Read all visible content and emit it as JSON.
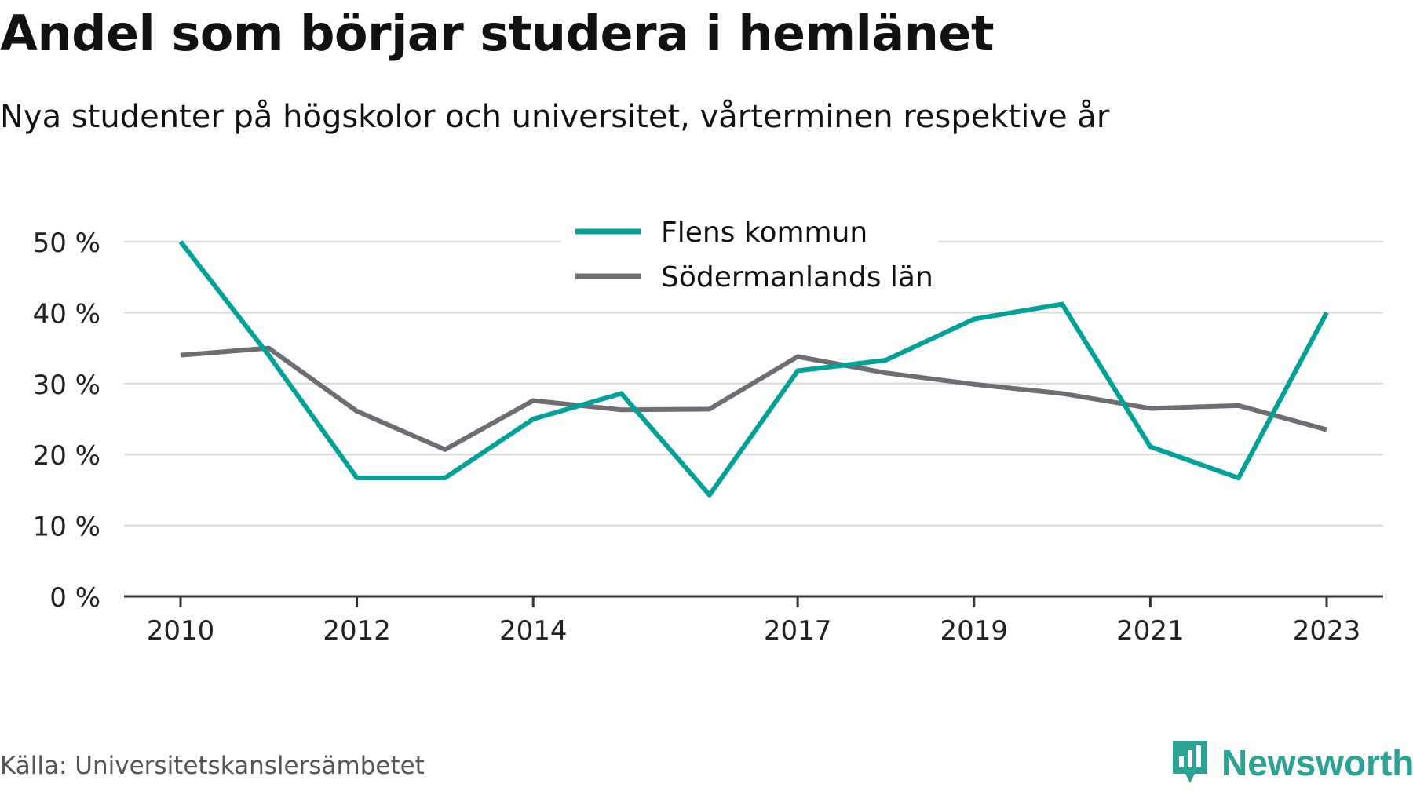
{
  "title": "Andel som börjar studera i hemlänet",
  "subtitle": "Nya studenter på högskolor och universitet, vårterminen respektive år",
  "source": "Källa: Universitetskanslersämbetet",
  "brand": {
    "name": "Newsworthy",
    "icon": "newsworthy-logo-icon",
    "color": "#2aa395"
  },
  "chart_data": {
    "type": "line",
    "x": [
      2010,
      2011,
      2012,
      2013,
      2014,
      2015,
      2016,
      2017,
      2018,
      2019,
      2020,
      2021,
      2022,
      2023
    ],
    "x_tick_values": [
      2010,
      2012,
      2014,
      2017,
      2019,
      2021,
      2023
    ],
    "x_tick_labels": [
      "2010",
      "2012",
      "2014",
      "2017",
      "2019",
      "2021",
      "2023"
    ],
    "y_ticks": [
      0,
      10,
      20,
      30,
      40,
      50
    ],
    "y_tick_labels": [
      "0 %",
      "10 %",
      "20 %",
      "30 %",
      "40 %",
      "50 %"
    ],
    "ylim": [
      0,
      50
    ],
    "grid": true,
    "legend_position": "top-center",
    "series": [
      {
        "name": "Flens kommun",
        "color": "#00a197",
        "values": [
          50.0,
          34.0,
          16.7,
          16.7,
          25.0,
          28.6,
          14.3,
          31.8,
          33.3,
          39.1,
          41.2,
          21.1,
          16.7,
          40.0
        ]
      },
      {
        "name": "Södermanlands län",
        "color": "#6f6d74",
        "values": [
          34.0,
          35.0,
          26.1,
          20.7,
          27.6,
          26.3,
          26.4,
          33.8,
          31.5,
          29.9,
          28.6,
          26.5,
          26.9,
          23.5
        ]
      }
    ]
  }
}
